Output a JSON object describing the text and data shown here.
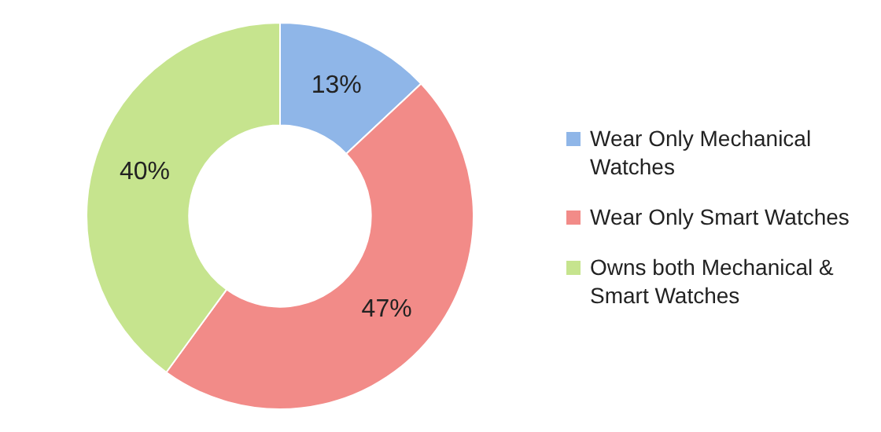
{
  "chart_data": {
    "type": "donut",
    "categories": [
      "Wear Only Mechanical Watches",
      "Wear Only Smart Watches",
      "Owns both Mechanical & Smart Watches"
    ],
    "values": [
      13,
      47,
      40
    ],
    "colors": [
      "#8fb6e8",
      "#f28b88",
      "#c6e48e"
    ],
    "value_labels": [
      "13%",
      "47%",
      "40%"
    ],
    "legend": "right"
  }
}
